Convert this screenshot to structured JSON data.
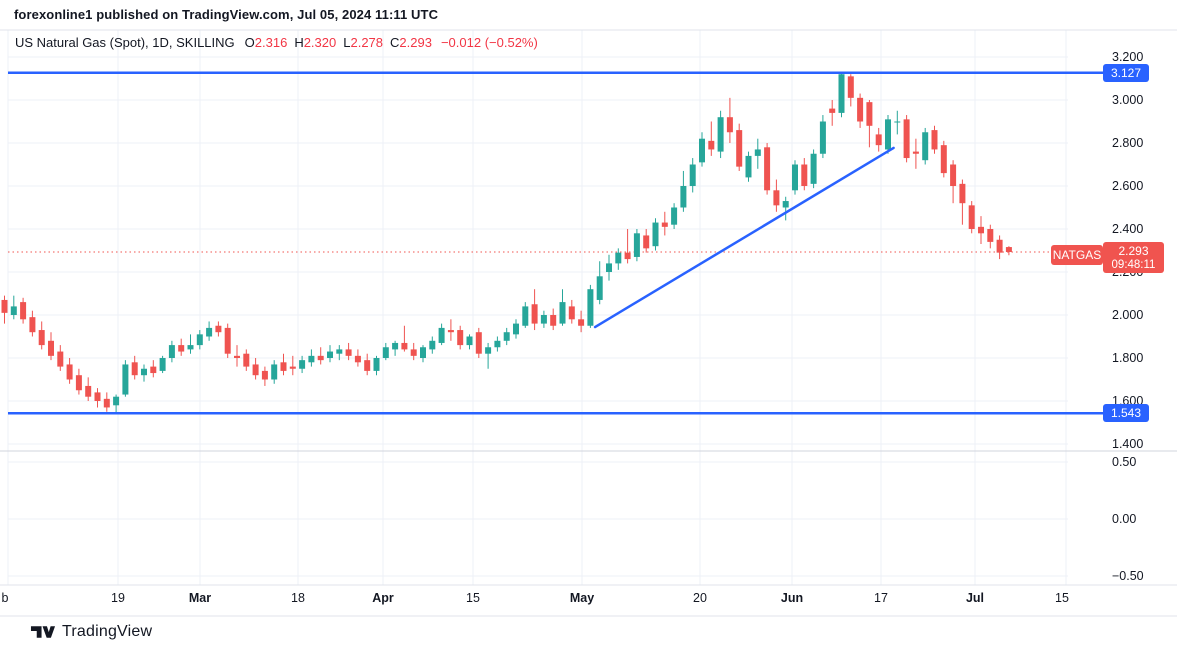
{
  "topbar": {
    "text": "forexonline1 published on TradingView.com, Jul 05, 2024 11:11 UTC"
  },
  "legend": {
    "title": "US Natural Gas (Spot), 1D, SKILLING",
    "fields": [
      {
        "label": "O",
        "value": "2.316"
      },
      {
        "label": "H",
        "value": "2.320"
      },
      {
        "label": "L",
        "value": "2.278"
      },
      {
        "label": "C",
        "value": "2.293"
      }
    ],
    "change": "−0.012 (−0.52%)"
  },
  "price_axis": {
    "main_labels": [
      {
        "text": "3.200",
        "value": 3.2
      },
      {
        "text": "3.000",
        "value": 3.0
      },
      {
        "text": "2.800",
        "value": 2.8
      },
      {
        "text": "2.600",
        "value": 2.6
      },
      {
        "text": "2.400",
        "value": 2.4
      },
      {
        "text": "2.200",
        "value": 2.2
      },
      {
        "text": "2.000",
        "value": 2.0
      },
      {
        "text": "1.800",
        "value": 1.8
      },
      {
        "text": "1.600",
        "value": 1.6
      },
      {
        "text": "1.400",
        "value": 1.4
      }
    ],
    "indicator_labels": [
      {
        "text": "0.50",
        "value": 0.5
      },
      {
        "text": "0.00",
        "value": 0.0
      },
      {
        "text": "−0.50",
        "value": -0.5
      }
    ]
  },
  "time_axis": {
    "labels": [
      "b",
      "19",
      "Mar",
      "18",
      "Apr",
      "15",
      "May",
      "20",
      "Jun",
      "17",
      "Jul",
      "15"
    ]
  },
  "badges": {
    "resistance": {
      "text": "3.127",
      "value": 3.127
    },
    "support": {
      "text": "1.543",
      "value": 1.543
    },
    "price_label": {
      "symbol": "NATGAS",
      "price": "2.293",
      "countdown": "09:48:11"
    }
  },
  "footer": {
    "brand": "TradingView"
  },
  "colors": {
    "up": "#26A69A",
    "down": "#EF5350",
    "drawing_blue": "#2962FF",
    "price_line_red": "#F0544F",
    "legend_red": "#F23645",
    "grid": "#EEF1F7",
    "separator": "#D1D4DC",
    "border": "#E0E3EB",
    "axis_text": "#131722"
  },
  "chart_data": {
    "type": "candlestick",
    "title": "US Natural Gas (Spot), 1D, SKILLING",
    "symbol": "NATGAS",
    "timeframe": "1D",
    "x_axis_ticks": [
      "b",
      "19",
      "Mar",
      "18",
      "Apr",
      "15",
      "May",
      "20",
      "Jun",
      "17",
      "Jul",
      "15"
    ],
    "y_ticks_main_pane": [
      3.2,
      3.0,
      2.8,
      2.6,
      2.4,
      2.2,
      2.0,
      1.8,
      1.6,
      1.4
    ],
    "y_ticks_lower_pane": [
      0.5,
      0.0,
      -0.5
    ],
    "grid": true,
    "last": {
      "open": 2.316,
      "high": 2.32,
      "low": 2.278,
      "close": 2.293,
      "change": -0.012,
      "change_pct": -0.52
    },
    "resistance_line": 3.127,
    "support_line": 1.543,
    "current_price_line": 2.293,
    "trendline": {
      "from": {
        "index": 63.5,
        "price": 1.944
      },
      "to": {
        "index": 95.6,
        "price": 2.777
      }
    },
    "candles": [
      [
        2.07,
        2.09,
        1.96,
        2.01
      ],
      [
        2.0,
        2.09,
        1.98,
        2.04
      ],
      [
        2.06,
        2.08,
        1.96,
        1.98
      ],
      [
        1.99,
        2.02,
        1.9,
        1.92
      ],
      [
        1.93,
        1.97,
        1.84,
        1.86
      ],
      [
        1.88,
        1.92,
        1.79,
        1.81
      ],
      [
        1.83,
        1.86,
        1.74,
        1.76
      ],
      [
        1.77,
        1.8,
        1.68,
        1.7
      ],
      [
        1.72,
        1.75,
        1.63,
        1.65
      ],
      [
        1.67,
        1.71,
        1.6,
        1.62
      ],
      [
        1.64,
        1.66,
        1.57,
        1.6
      ],
      [
        1.61,
        1.64,
        1.55,
        1.57
      ],
      [
        1.58,
        1.63,
        1.545,
        1.62
      ],
      [
        1.63,
        1.79,
        1.62,
        1.77
      ],
      [
        1.78,
        1.81,
        1.7,
        1.72
      ],
      [
        1.72,
        1.77,
        1.69,
        1.75
      ],
      [
        1.76,
        1.79,
        1.71,
        1.73
      ],
      [
        1.74,
        1.81,
        1.73,
        1.8
      ],
      [
        1.8,
        1.88,
        1.78,
        1.86
      ],
      [
        1.86,
        1.89,
        1.81,
        1.83
      ],
      [
        1.84,
        1.91,
        1.82,
        1.86
      ],
      [
        1.86,
        1.93,
        1.84,
        1.91
      ],
      [
        1.9,
        1.97,
        1.88,
        1.94
      ],
      [
        1.95,
        1.97,
        1.9,
        1.92
      ],
      [
        1.94,
        1.96,
        1.8,
        1.82
      ],
      [
        1.81,
        1.86,
        1.76,
        1.8
      ],
      [
        1.82,
        1.84,
        1.74,
        1.76
      ],
      [
        1.77,
        1.8,
        1.7,
        1.72
      ],
      [
        1.74,
        1.76,
        1.67,
        1.7
      ],
      [
        1.7,
        1.79,
        1.68,
        1.77
      ],
      [
        1.78,
        1.82,
        1.72,
        1.74
      ],
      [
        1.76,
        1.81,
        1.72,
        1.75
      ],
      [
        1.75,
        1.81,
        1.73,
        1.79
      ],
      [
        1.78,
        1.84,
        1.76,
        1.81
      ],
      [
        1.81,
        1.85,
        1.77,
        1.79
      ],
      [
        1.8,
        1.86,
        1.78,
        1.83
      ],
      [
        1.82,
        1.86,
        1.79,
        1.84
      ],
      [
        1.84,
        1.87,
        1.79,
        1.81
      ],
      [
        1.81,
        1.84,
        1.76,
        1.78
      ],
      [
        1.79,
        1.82,
        1.72,
        1.74
      ],
      [
        1.74,
        1.81,
        1.72,
        1.8
      ],
      [
        1.8,
        1.87,
        1.79,
        1.85
      ],
      [
        1.84,
        1.88,
        1.81,
        1.87
      ],
      [
        1.87,
        1.95,
        1.83,
        1.84
      ],
      [
        1.84,
        1.87,
        1.79,
        1.81
      ],
      [
        1.8,
        1.86,
        1.78,
        1.85
      ],
      [
        1.84,
        1.9,
        1.82,
        1.88
      ],
      [
        1.87,
        1.96,
        1.86,
        1.94
      ],
      [
        1.93,
        1.98,
        1.88,
        1.92
      ],
      [
        1.93,
        1.95,
        1.84,
        1.86
      ],
      [
        1.86,
        1.91,
        1.84,
        1.9
      ],
      [
        1.92,
        1.94,
        1.8,
        1.82
      ],
      [
        1.82,
        1.87,
        1.75,
        1.85
      ],
      [
        1.85,
        1.9,
        1.83,
        1.88
      ],
      [
        1.88,
        1.94,
        1.86,
        1.92
      ],
      [
        1.91,
        1.98,
        1.89,
        1.96
      ],
      [
        1.95,
        2.06,
        1.94,
        2.04
      ],
      [
        2.05,
        2.12,
        1.93,
        1.96
      ],
      [
        1.96,
        2.02,
        1.94,
        2.0
      ],
      [
        2.0,
        2.03,
        1.93,
        1.95
      ],
      [
        1.96,
        2.12,
        1.95,
        2.06
      ],
      [
        2.04,
        2.07,
        1.96,
        1.98
      ],
      [
        1.98,
        2.02,
        1.92,
        1.95
      ],
      [
        1.95,
        2.14,
        1.94,
        2.12
      ],
      [
        2.07,
        2.25,
        2.05,
        2.18
      ],
      [
        2.2,
        2.28,
        2.16,
        2.24
      ],
      [
        2.24,
        2.31,
        2.21,
        2.29
      ],
      [
        2.29,
        2.4,
        2.24,
        2.26
      ],
      [
        2.27,
        2.4,
        2.25,
        2.38
      ],
      [
        2.37,
        2.4,
        2.29,
        2.31
      ],
      [
        2.32,
        2.45,
        2.3,
        2.43
      ],
      [
        2.43,
        2.48,
        2.37,
        2.41
      ],
      [
        2.42,
        2.52,
        2.4,
        2.5
      ],
      [
        2.5,
        2.67,
        2.48,
        2.6
      ],
      [
        2.6,
        2.73,
        2.57,
        2.7
      ],
      [
        2.71,
        2.85,
        2.69,
        2.82
      ],
      [
        2.81,
        2.9,
        2.74,
        2.77
      ],
      [
        2.76,
        2.95,
        2.73,
        2.92
      ],
      [
        2.92,
        3.01,
        2.8,
        2.85
      ],
      [
        2.86,
        2.89,
        2.67,
        2.69
      ],
      [
        2.64,
        2.76,
        2.62,
        2.74
      ],
      [
        2.74,
        2.82,
        2.68,
        2.77
      ],
      [
        2.78,
        2.8,
        2.56,
        2.58
      ],
      [
        2.58,
        2.63,
        2.48,
        2.51
      ],
      [
        2.5,
        2.55,
        2.44,
        2.53
      ],
      [
        2.58,
        2.72,
        2.56,
        2.7
      ],
      [
        2.7,
        2.73,
        2.58,
        2.6
      ],
      [
        2.61,
        2.77,
        2.59,
        2.75
      ],
      [
        2.75,
        2.93,
        2.73,
        2.9
      ],
      [
        2.96,
        3.0,
        2.88,
        2.94
      ],
      [
        2.94,
        3.13,
        2.92,
        3.12
      ],
      [
        3.11,
        3.12,
        2.97,
        3.01
      ],
      [
        3.01,
        3.03,
        2.87,
        2.9
      ],
      [
        2.99,
        3.0,
        2.78,
        2.88
      ],
      [
        2.84,
        2.87,
        2.76,
        2.79
      ],
      [
        2.77,
        2.93,
        2.75,
        2.91
      ],
      [
        2.9,
        2.95,
        2.84,
        2.9
      ],
      [
        2.91,
        2.93,
        2.71,
        2.73
      ],
      [
        2.76,
        2.82,
        2.68,
        2.75
      ],
      [
        2.72,
        2.87,
        2.7,
        2.85
      ],
      [
        2.86,
        2.88,
        2.75,
        2.77
      ],
      [
        2.79,
        2.81,
        2.64,
        2.66
      ],
      [
        2.7,
        2.72,
        2.52,
        2.6
      ],
      [
        2.61,
        2.63,
        2.42,
        2.52
      ],
      [
        2.51,
        2.53,
        2.38,
        2.4
      ],
      [
        2.41,
        2.46,
        2.33,
        2.38
      ],
      [
        2.4,
        2.42,
        2.31,
        2.34
      ],
      [
        2.35,
        2.37,
        2.26,
        2.29
      ],
      [
        2.316,
        2.32,
        2.278,
        2.293
      ]
    ]
  }
}
